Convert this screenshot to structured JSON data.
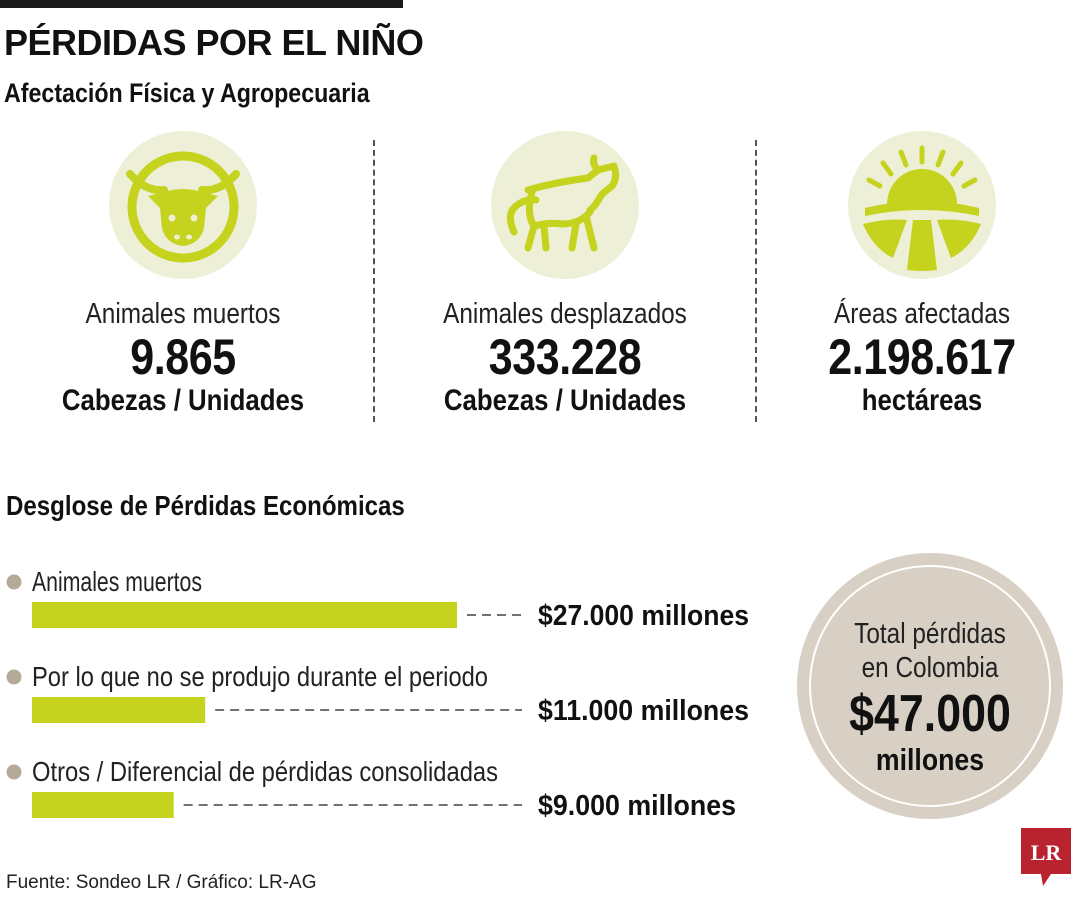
{
  "header": {
    "title": "PÉRDIDAS POR EL NIÑO",
    "subtitle": "Afectación Física y Agropecuaria"
  },
  "stats": [
    {
      "icon": "cow-head-icon",
      "label": "Animales muertos",
      "value": "9.865",
      "unit": "Cabezas / Unidades"
    },
    {
      "icon": "walking-animal-icon",
      "label": "Animales desplazados",
      "value": "333.228",
      "unit": "Cabezas / Unidades"
    },
    {
      "icon": "sun-over-fields-icon",
      "label": "Áreas afectadas",
      "value": "2.198.617",
      "unit": "hectáreas"
    }
  ],
  "breakdown": {
    "title": "Desglose de Pérdidas Económicas"
  },
  "chart_data": {
    "type": "bar",
    "orientation": "horizontal",
    "categories": [
      "Animales muertos",
      "Por lo que no se produjo durante el periodo",
      "Otros / Diferencial de pérdidas consolidadas"
    ],
    "values": [
      27000,
      11000,
      9000
    ],
    "value_labels": [
      "$27.000 millones",
      "$11.000 millones",
      "$9.000 millones"
    ],
    "unit": "millones",
    "xlim": [
      0,
      27000
    ]
  },
  "total": {
    "label_line1": "Total pérdidas",
    "label_line2": "en Colombia",
    "value": "$47.000",
    "unit": "millones"
  },
  "source": "Fuente: Sondeo LR / Gráfico: LR-AG",
  "logo_text": "LR",
  "colors": {
    "accent": "#c5d21e",
    "icon_bg": "#edf0d6",
    "circle": "#d8d0c4",
    "bullet": "#b5aa99",
    "logo": "#b8232f"
  }
}
